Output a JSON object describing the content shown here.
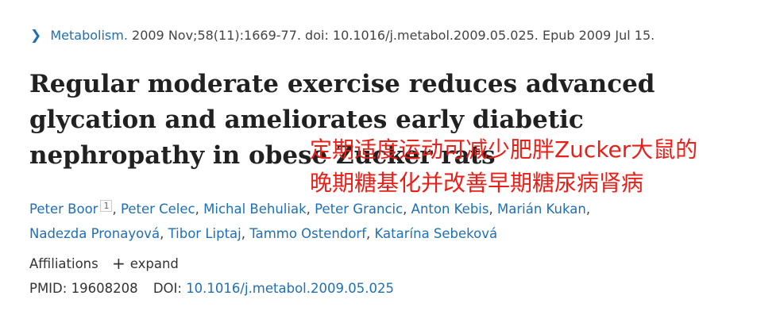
{
  "citation": {
    "journal": "Metabolism.",
    "details": "2009 Nov;58(11):1669-77. doi: 10.1016/j.metabol.2009.05.025. Epub 2009 Jul 15."
  },
  "article": {
    "title": "Regular moderate exercise reduces advanced glycation and ameliorates early diabetic nephropathy in obese Zucker rats",
    "translation_line1": "定期适度运动可减少肥胖Zucker大鼠的",
    "translation_line2": "晚期糖基化并改善早期糖尿病肾病"
  },
  "authors": [
    {
      "name": "Peter Boor",
      "sup": "1",
      "sep": ", "
    },
    {
      "name": "Peter Celec",
      "sep": ", "
    },
    {
      "name": "Michal Behuliak",
      "sep": ", "
    },
    {
      "name": "Peter Grancic",
      "sep": ", "
    },
    {
      "name": "Anton Kebis",
      "sep": ", "
    },
    {
      "name": "Marián Kukan",
      "sep": ","
    },
    {
      "name": "Nadezda Pronayová",
      "sep": ", "
    },
    {
      "name": "Tibor Liptaj",
      "sep": ", "
    },
    {
      "name": "Tammo Ostendorf",
      "sep": ", "
    },
    {
      "name": "Katarína Sebeková",
      "sep": ""
    }
  ],
  "affiliations": {
    "label": "Affiliations",
    "expand_label": "expand",
    "expand_icon": "+"
  },
  "identifiers": {
    "pmid_label": "PMID:",
    "pmid": "19608208",
    "doi_label": "DOI:",
    "doi": "10.1016/j.metabol.2009.05.025"
  },
  "icons": {
    "journal_chevron": "chevron-right-icon",
    "expand": "plus-icon"
  },
  "colors": {
    "link": "#1f6fb3",
    "annotation": "#e8201a",
    "text": "#212121"
  }
}
